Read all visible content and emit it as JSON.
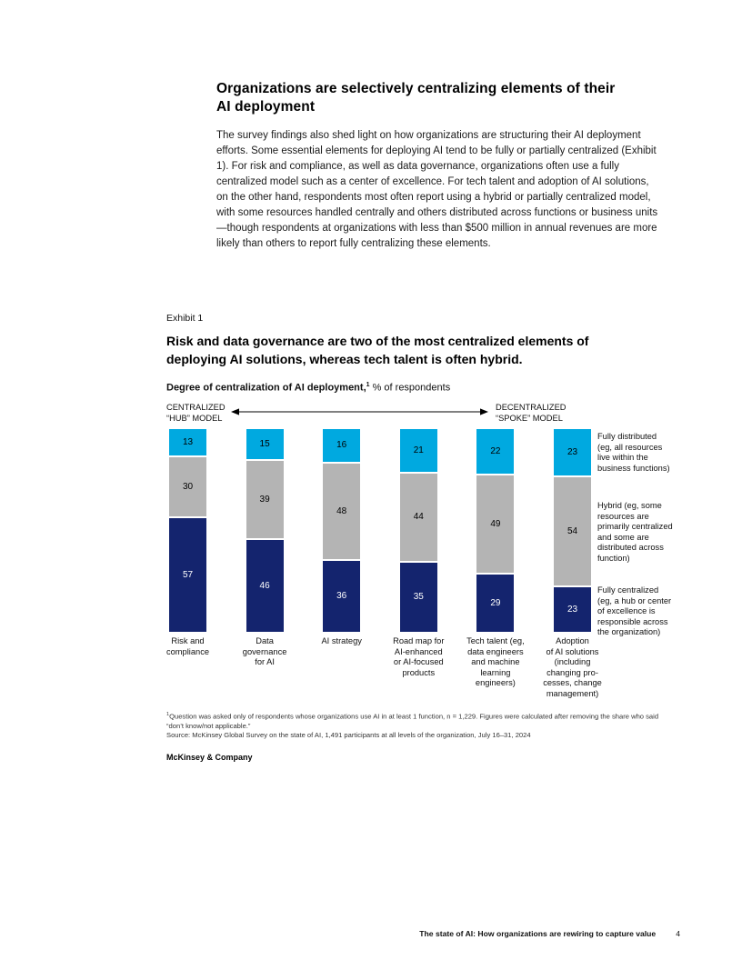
{
  "intro": {
    "heading": "Organizations are selectively centralizing elements of their\nAI deployment",
    "body": "The survey findings also shed light on how organizations are structuring their AI deployment efforts. Some essential elements for deploying AI tend to be fully or partially centralized (Exhibit 1). For risk and compliance, as well as data governance, organizations often use a fully centralized model such as a center of excellence. For tech talent and adoption of AI solutions, on the other hand, respondents most often report using a hybrid or partially centralized model, with some resources handled centrally and others distributed across functions or business units—though respondents at organizations with less than $500 million in annual revenues are more likely than others to report fully centralizing these elements."
  },
  "exhibit": {
    "label": "Exhibit 1",
    "title": "Risk and data governance are two of the most centralized elements of\ndeploying AI solutions, whereas tech talent is often hybrid.",
    "subtitle_bold": "Degree of centralization of AI deployment,",
    "subtitle_sup": "1",
    "subtitle_rest": " % of respondents"
  },
  "chart_data": {
    "type": "bar",
    "stacked": true,
    "ylim": [
      0,
      100
    ],
    "unit": "% of respondents",
    "grid": false,
    "legend_position": "right",
    "axis_left_label": "CENTRALIZED\n“HUB” MODEL",
    "axis_right_label": "DECENTRALIZED\n“SPOKE” MODEL",
    "categories": [
      "Risk and\ncompliance",
      "Data\ngovernance\nfor AI",
      "AI strategy",
      "Road map for\nAI-enhanced\nor AI-focused\nproducts",
      "Tech talent (eg,\ndata engineers\nand machine\nlearning\nengineers)",
      "Adoption\nof AI solutions\n(including\nchanging pro-\ncesses, change\nmanagement)"
    ],
    "series": [
      {
        "key": "fully-distributed",
        "name": "Fully distributed",
        "desc": "Fully distributed\n(eg, all resources\nlive within the\nbusiness functions)",
        "color": "#00A9E0",
        "value_color": "#000000",
        "values": [
          13,
          15,
          16,
          21,
          22,
          23
        ]
      },
      {
        "key": "hybrid",
        "name": "Hybrid",
        "desc": "Hybrid (eg, some\nresources are\nprimarily centralized\nand some are\ndistributed across\nfunction)",
        "color": "#B4B4B4",
        "value_color": "#000000",
        "values": [
          30,
          39,
          48,
          44,
          49,
          54
        ]
      },
      {
        "key": "fully-centralized",
        "name": "Fully centralized",
        "desc": "Fully centralized\n(eg, a hub or center\nof excellence is\nresponsible across\nthe organization)",
        "color": "#14246E",
        "value_color": "#ffffff",
        "values": [
          57,
          46,
          36,
          35,
          29,
          23
        ]
      }
    ]
  },
  "footnote": {
    "sup": "1",
    "text": "Question was asked only of respondents whose organizations use AI in at least 1 function, n = 1,229. Figures were calculated after removing the share who said\n“don’t know/not applicable.”",
    "source": "Source: McKinsey Global Survey on the state of AI, 1,491 participants at all levels of the organization, July 16–31, 2024"
  },
  "brand": "McKinsey & Company",
  "footer": {
    "title": "The state of AI: How organizations are rewiring to capture value",
    "page": "4"
  }
}
